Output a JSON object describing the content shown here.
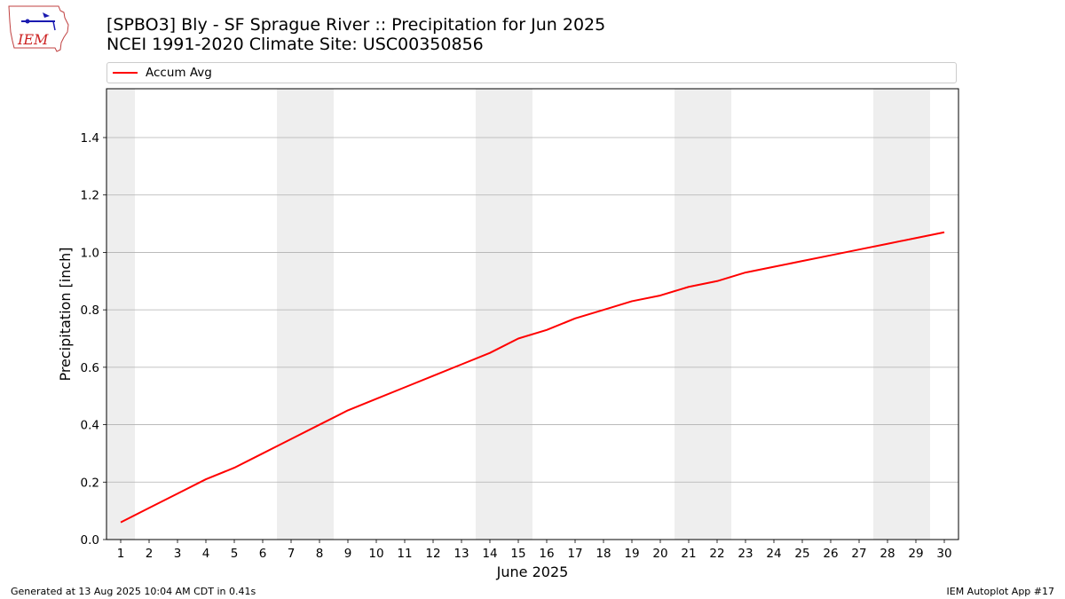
{
  "header": {
    "title_line1": "[SPBO3] Bly - SF Sprague River :: Precipitation for Jun 2025",
    "title_line2": "NCEI 1991-2020 Climate Site: USC00350856",
    "logo_text": "IEM"
  },
  "footer": {
    "left": "Generated at 13 Aug 2025 10:04 AM CDT in 0.41s",
    "right": "IEM Autoplot App #17"
  },
  "colors": {
    "series": "#ff0000",
    "weekend_shade": "#eeeeee",
    "grid": "#b0b0b0"
  },
  "chart_data": {
    "type": "line",
    "xlabel": "June 2025",
    "ylabel": "Precipitation [inch]",
    "xlim": [
      0.5,
      30.5
    ],
    "ylim": [
      0,
      1.57
    ],
    "yticks": [
      0.0,
      0.2,
      0.4,
      0.6,
      0.8,
      1.0,
      1.2,
      1.4
    ],
    "ytick_labels": [
      "0.0",
      "0.2",
      "0.4",
      "0.6",
      "0.8",
      "1.0",
      "1.2",
      "1.4"
    ],
    "x": [
      1,
      2,
      3,
      4,
      5,
      6,
      7,
      8,
      9,
      10,
      11,
      12,
      13,
      14,
      15,
      16,
      17,
      18,
      19,
      20,
      21,
      22,
      23,
      24,
      25,
      26,
      27,
      28,
      29,
      30
    ],
    "x_tick_labels": [
      "1",
      "2",
      "3",
      "4",
      "5",
      "6",
      "7",
      "8",
      "9",
      "10",
      "11",
      "12",
      "13",
      "14",
      "15",
      "16",
      "17",
      "18",
      "19",
      "20",
      "21",
      "22",
      "23",
      "24",
      "25",
      "26",
      "27",
      "28",
      "29",
      "30"
    ],
    "shaded_ranges": [
      [
        0.5,
        1.5
      ],
      [
        6.5,
        8.5
      ],
      [
        13.5,
        15.5
      ],
      [
        20.5,
        22.5
      ],
      [
        27.5,
        29.5
      ]
    ],
    "grid": "y",
    "legend_position": "top, above plot",
    "series": [
      {
        "name": "Accum Avg",
        "values": [
          0.06,
          0.11,
          0.16,
          0.21,
          0.25,
          0.3,
          0.35,
          0.4,
          0.45,
          0.49,
          0.53,
          0.57,
          0.61,
          0.65,
          0.7,
          0.73,
          0.77,
          0.8,
          0.83,
          0.85,
          0.88,
          0.9,
          0.93,
          0.95,
          0.97,
          0.99,
          1.01,
          1.03,
          1.05,
          1.07
        ]
      }
    ]
  }
}
